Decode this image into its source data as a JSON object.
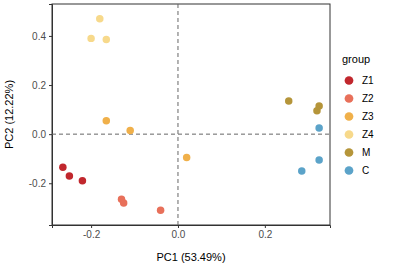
{
  "chart_data": {
    "type": "scatter",
    "x_label": "PC1 (53.49%)",
    "y_label": "PC2 (12.22%)",
    "legend_title": "group",
    "legend": "right",
    "marker": "circle",
    "grid": false,
    "xlim": [
      -0.29,
      0.35
    ],
    "ylim": [
      -0.37,
      0.53
    ],
    "xticks": [
      -0.2,
      {
        "value": 0,
        "label": "0.0"
      },
      0.2
    ],
    "yticks": [
      -0.2,
      {
        "value": 0,
        "label": "0.0"
      },
      0.2,
      0.4
    ],
    "reference_lines": {
      "x": [
        0
      ],
      "y": [
        0
      ]
    },
    "series": [
      {
        "name": "Z1",
        "color": "#c1272d",
        "x": [
          -0.265,
          -0.25,
          -0.22
        ],
        "values": [
          -0.135,
          -0.17,
          -0.19
        ]
      },
      {
        "name": "Z2",
        "color": "#e8705a",
        "x": [
          -0.13,
          -0.125,
          -0.04
        ],
        "values": [
          -0.265,
          -0.28,
          -0.31
        ]
      },
      {
        "name": "Z3",
        "color": "#f0b04a",
        "x": [
          -0.165,
          -0.11,
          0.02
        ],
        "values": [
          0.055,
          0.015,
          -0.095
        ]
      },
      {
        "name": "Z4",
        "color": "#f7d98b",
        "x": [
          -0.2,
          -0.18,
          -0.165
        ],
        "values": [
          0.39,
          0.47,
          0.385
        ]
      },
      {
        "name": "M",
        "color": "#b5953a",
        "x": [
          0.255,
          0.32,
          0.325
        ],
        "values": [
          0.135,
          0.095,
          0.115
        ]
      },
      {
        "name": "C",
        "color": "#5ba3c9",
        "x": [
          0.325,
          0.325,
          0.285
        ],
        "values": [
          0.025,
          -0.105,
          -0.15
        ]
      }
    ]
  }
}
